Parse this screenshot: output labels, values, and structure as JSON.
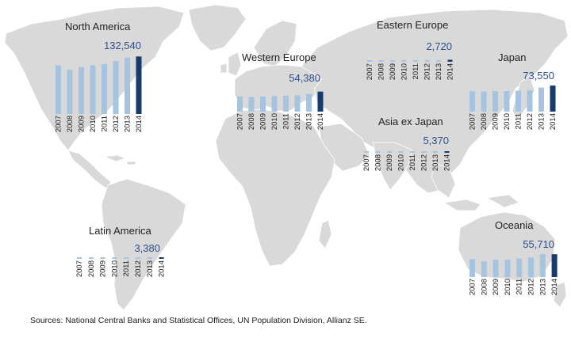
{
  "source_note": "Sources: National Central Banks and Statistical Offices, UN Population Division, Allianz SE.",
  "colors": {
    "bar_light": "#a6c3e0",
    "bar_highlight": "#173a6f",
    "value_label": "#2d4f8a",
    "land": "#d9d9d9",
    "background": "#ffffff"
  },
  "chart_data": [
    {
      "type": "bar",
      "title": "North America",
      "categories": [
        "2007",
        "2008",
        "2009",
        "2010",
        "2011",
        "2012",
        "2013",
        "2014"
      ],
      "values": [
        112000,
        102000,
        108000,
        112000,
        115000,
        122000,
        130000,
        132540
      ],
      "value_label": "132,540",
      "ylim": [
        0,
        135000
      ]
    },
    {
      "type": "bar",
      "title": "Western Europe",
      "categories": [
        "2007",
        "2008",
        "2009",
        "2010",
        "2011",
        "2012",
        "2013",
        "2014"
      ],
      "values": [
        41000,
        40000,
        41000,
        42000,
        43000,
        44000,
        48000,
        54380
      ],
      "value_label": "54,380",
      "ylim": [
        0,
        58000
      ]
    },
    {
      "type": "bar",
      "title": "Eastern Europe",
      "categories": [
        "2007",
        "2008",
        "2009",
        "2010",
        "2011",
        "2012",
        "2013",
        "2014"
      ],
      "values": [
        900,
        800,
        850,
        1000,
        1100,
        1200,
        1500,
        2720
      ],
      "value_label": "2,720",
      "ylim": [
        0,
        15000
      ]
    },
    {
      "type": "bar",
      "title": "Japan",
      "categories": [
        "2007",
        "2008",
        "2009",
        "2010",
        "2011",
        "2012",
        "2013",
        "2014"
      ],
      "values": [
        58000,
        57000,
        58000,
        58000,
        59000,
        60000,
        68000,
        73550
      ],
      "value_label": "73,550",
      "ylim": [
        0,
        76000
      ]
    },
    {
      "type": "bar",
      "title": "Asia ex Japan",
      "categories": [
        "2007",
        "2008",
        "2009",
        "2010",
        "2011",
        "2012",
        "2013",
        "2014"
      ],
      "values": [
        800,
        700,
        900,
        1200,
        1400,
        1700,
        2100,
        5370
      ],
      "value_label": "5,370",
      "ylim": [
        0,
        38000
      ]
    },
    {
      "type": "bar",
      "title": "Latin America",
      "categories": [
        "2007",
        "2008",
        "2009",
        "2010",
        "2011",
        "2012",
        "2013",
        "2014"
      ],
      "values": [
        600,
        600,
        800,
        1000,
        1300,
        1700,
        2100,
        3380
      ],
      "value_label": "3,380",
      "ylim": [
        0,
        28000
      ]
    },
    {
      "type": "bar",
      "title": "Oceania",
      "categories": [
        "2007",
        "2008",
        "2009",
        "2010",
        "2011",
        "2012",
        "2013",
        "2014"
      ],
      "values": [
        44000,
        38000,
        42000,
        43000,
        45000,
        48000,
        56000,
        55710
      ],
      "value_label": "55,710",
      "ylim": [
        0,
        58000
      ]
    }
  ]
}
